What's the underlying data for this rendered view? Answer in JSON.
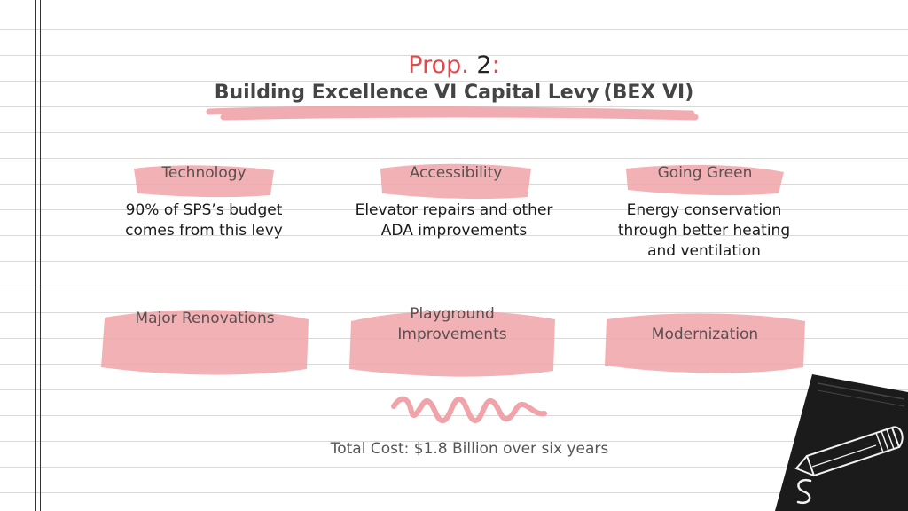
{
  "header": {
    "prop_prefix": "Prop.",
    "prop_number": "2",
    "prop_suffix": ":",
    "title": "Building Excellence VI Capital Levy",
    "abbreviation": "(BEX VI)"
  },
  "categories": [
    {
      "label": "Technology",
      "description_lines": [
        "90% of SPS’s budget",
        "comes from this levy"
      ]
    },
    {
      "label": "Accessibility",
      "description_lines": [
        "Elevator repairs and other",
        "ADA improvements"
      ]
    },
    {
      "label": "Going Green",
      "description_lines": [
        "Energy conservation",
        "through better heating",
        "and ventilation"
      ]
    }
  ],
  "projects": [
    {
      "label_lines": [
        "Major Renovations"
      ]
    },
    {
      "label_lines": [
        "Playground",
        "Improvements"
      ]
    },
    {
      "label_lines": [
        "Modernization"
      ]
    }
  ],
  "footer": {
    "total_cost": "Total Cost: $1.8 Billion over six years"
  },
  "colors": {
    "accent": "#e04a4d",
    "highlight": "#f0a3a8",
    "text": "#1a1a1a",
    "rule": "#d9d9d9"
  },
  "icons": [
    "pencil-icon",
    "notebook-icon",
    "squiggle-decoration"
  ]
}
